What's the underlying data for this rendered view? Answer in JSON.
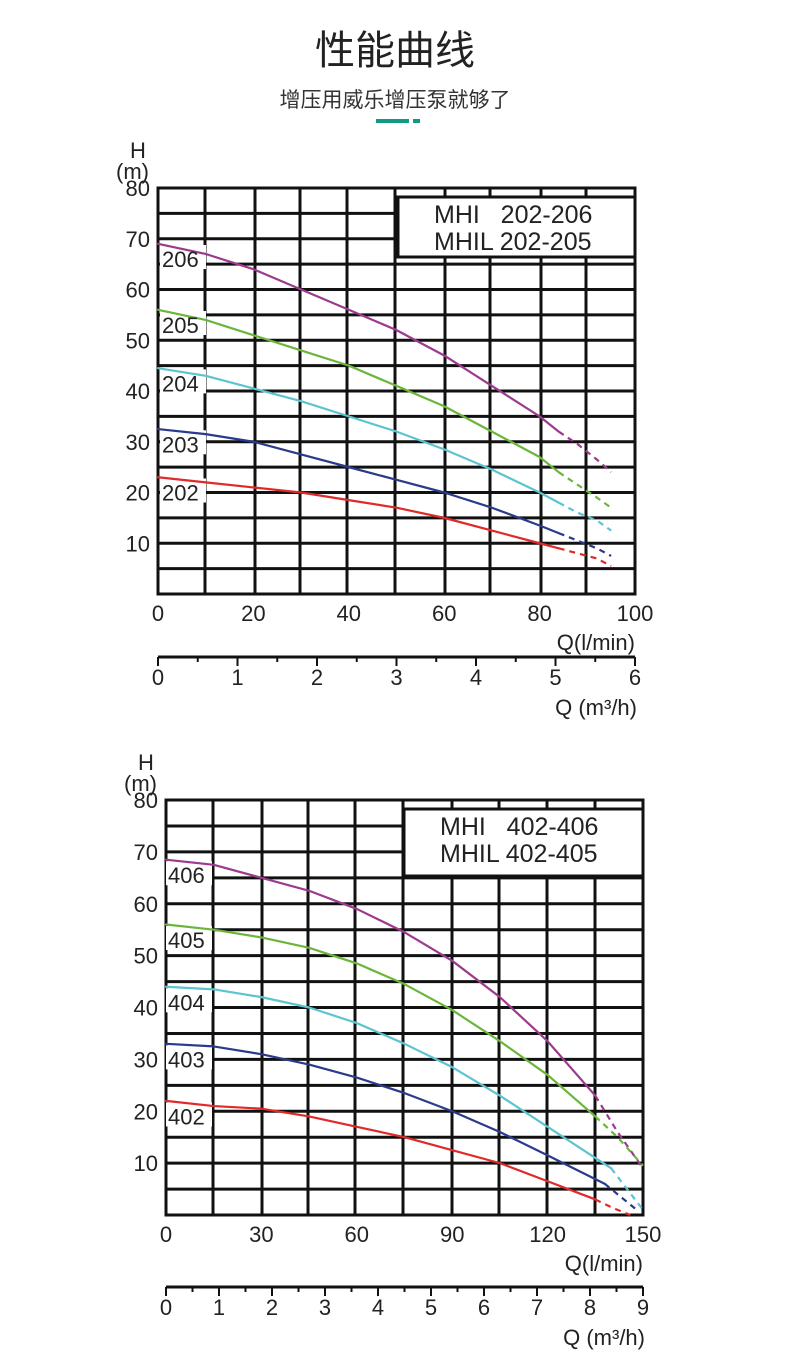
{
  "header": {
    "title": "性能曲线",
    "subtitle": "增压用威乐增压泵就够了",
    "accent_color": "#0f9a83"
  },
  "chart_data": [
    {
      "type": "line",
      "legend_lines": [
        "MHI   202-206",
        "MHIL 202-205"
      ],
      "legend_placement": "top-right",
      "y_axis_label": "H",
      "y_axis_unit": "(m)",
      "x_axis_label": "Q(l/min)",
      "x2_axis_label": "Q (m³/h)",
      "y_ticks": [
        10,
        20,
        30,
        40,
        50,
        60,
        70,
        80
      ],
      "x_ticks": [
        0,
        20,
        40,
        60,
        80,
        100
      ],
      "x2_ticks": [
        0,
        1,
        2,
        3,
        4,
        5,
        6
      ],
      "ylim": [
        0,
        80
      ],
      "xlim": [
        0,
        100
      ],
      "grid": true,
      "series": [
        {
          "name": "206",
          "color": "#9b3a8e",
          "x": [
            0,
            10,
            20,
            30,
            40,
            50,
            60,
            70,
            80,
            84
          ],
          "y": [
            69,
            67,
            64,
            60,
            56,
            52,
            47,
            41,
            35,
            32
          ],
          "dashed_x": [
            84,
            88,
            92,
            95
          ],
          "dashed_y": [
            32,
            29.5,
            26.5,
            24
          ]
        },
        {
          "name": "205",
          "color": "#6bb63a",
          "x": [
            0,
            10,
            20,
            30,
            40,
            50,
            60,
            70,
            80,
            84
          ],
          "y": [
            56,
            54,
            51,
            48,
            45,
            41,
            37,
            32,
            27,
            24
          ],
          "dashed_x": [
            84,
            88,
            92,
            95
          ],
          "dashed_y": [
            24,
            21.5,
            19,
            17
          ]
        },
        {
          "name": "204",
          "color": "#5cc4d1",
          "x": [
            0,
            10,
            20,
            30,
            40,
            50,
            60,
            70,
            80,
            84
          ],
          "y": [
            44.5,
            43,
            40.5,
            38,
            35,
            32,
            28.5,
            24.5,
            20,
            18
          ],
          "dashed_x": [
            84,
            88,
            92,
            95
          ],
          "dashed_y": [
            18,
            16,
            14.5,
            12.5
          ]
        },
        {
          "name": "203",
          "color": "#2b3a8a",
          "x": [
            0,
            10,
            20,
            30,
            40,
            50,
            60,
            70,
            80,
            84
          ],
          "y": [
            32.5,
            31.5,
            30,
            27.5,
            25,
            22.5,
            20,
            17,
            13.5,
            12
          ],
          "dashed_x": [
            84,
            88,
            92,
            95
          ],
          "dashed_y": [
            12,
            10.5,
            9,
            7.5
          ]
        },
        {
          "name": "202",
          "color": "#e02a2a",
          "x": [
            0,
            10,
            20,
            30,
            40,
            50,
            60,
            70,
            80,
            84
          ],
          "y": [
            23,
            22,
            21,
            20,
            18.5,
            17,
            15,
            12.5,
            10,
            9
          ],
          "dashed_x": [
            84,
            88,
            92,
            95
          ],
          "dashed_y": [
            9,
            8,
            7,
            5.5
          ]
        }
      ]
    },
    {
      "type": "line",
      "legend_lines": [
        "MHI   402-406",
        "MHIL 402-405"
      ],
      "legend_placement": "top-right",
      "y_axis_label": "H",
      "y_axis_unit": "(m)",
      "x_axis_label": "Q(l/min)",
      "x2_axis_label": "Q (m³/h)",
      "y_ticks": [
        10,
        20,
        30,
        40,
        50,
        60,
        70,
        80
      ],
      "x_ticks": [
        0,
        30,
        60,
        90,
        120,
        150
      ],
      "x2_ticks": [
        0,
        1,
        2,
        3,
        4,
        5,
        6,
        7,
        8,
        9
      ],
      "ylim": [
        0,
        80
      ],
      "xlim": [
        0,
        150
      ],
      "grid": true,
      "series": [
        {
          "name": "406",
          "color": "#9b3a8e",
          "x": [
            0,
            15,
            30,
            45,
            60,
            75,
            90,
            105,
            120,
            135
          ],
          "y": [
            68.5,
            67.5,
            65,
            62.5,
            59,
            54.5,
            49,
            42,
            33.5,
            23
          ],
          "dashed_x": [
            135,
            142,
            150
          ],
          "dashed_y": [
            23,
            16,
            9
          ]
        },
        {
          "name": "405",
          "color": "#6bb63a",
          "x": [
            0,
            15,
            30,
            45,
            60,
            75,
            90,
            105,
            120,
            135
          ],
          "y": [
            56,
            55,
            53.5,
            51.5,
            48.5,
            44.5,
            39.5,
            33.5,
            27,
            19
          ],
          "dashed_x": [
            135,
            142,
            150
          ],
          "dashed_y": [
            19,
            15,
            9.5
          ]
        },
        {
          "name": "404",
          "color": "#5cc4d1",
          "x": [
            0,
            15,
            30,
            45,
            60,
            75,
            90,
            105,
            120,
            140
          ],
          "y": [
            44,
            43.5,
            42,
            40,
            37,
            33,
            28.5,
            23,
            17,
            9
          ],
          "dashed_x": [
            140,
            145,
            150
          ],
          "dashed_y": [
            9,
            5,
            1
          ]
        },
        {
          "name": "403",
          "color": "#2b3a8a",
          "x": [
            0,
            15,
            30,
            45,
            60,
            75,
            90,
            105,
            120,
            138
          ],
          "y": [
            33,
            32.5,
            31,
            29,
            26.5,
            23.5,
            20,
            16,
            11.5,
            6
          ],
          "dashed_x": [
            138,
            143,
            148
          ],
          "dashed_y": [
            6,
            3.5,
            1
          ]
        },
        {
          "name": "402",
          "color": "#e02a2a",
          "x": [
            0,
            15,
            30,
            45,
            60,
            75,
            90,
            105,
            120,
            135
          ],
          "y": [
            22,
            21,
            20.5,
            19,
            17,
            15,
            12.5,
            10,
            6.5,
            3
          ],
          "dashed_x": [
            135,
            140,
            146
          ],
          "dashed_y": [
            3,
            1.5,
            0
          ]
        }
      ]
    }
  ]
}
